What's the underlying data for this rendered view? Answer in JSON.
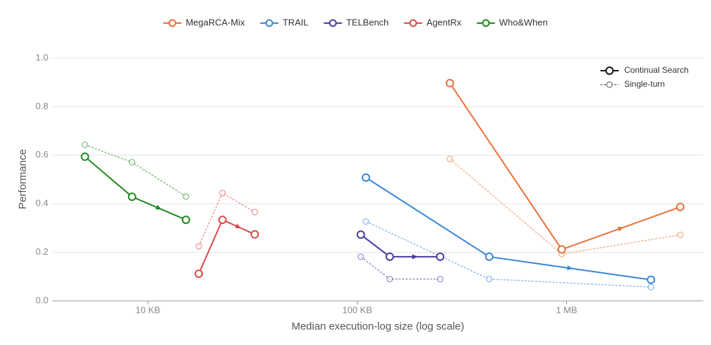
{
  "chart_data": {
    "type": "line",
    "xlabel": "Median execution-log size (log scale)",
    "ylabel": "Performance",
    "xscale": "log",
    "xlim": [
      3.5,
      4500
    ],
    "xticks": [
      {
        "value": 10,
        "label": "10 KB"
      },
      {
        "value": 100,
        "label": "100 KB"
      },
      {
        "value": 1000,
        "label": "1 MB"
      }
    ],
    "ylim": [
      0,
      1
    ],
    "yticks": [
      {
        "value": 0,
        "label": "0.0"
      },
      0.2,
      0.4,
      0.6,
      0.8,
      {
        "value": 1,
        "label": "1.0"
      }
    ],
    "grid": true,
    "style_legend": {
      "continual": "Continual Search",
      "single": "Single-turn"
    },
    "series": [
      {
        "name": "MegaRCA-Mix",
        "color": "#e8703a",
        "x": [
          277,
          948,
          3494
        ],
        "values": [
          0.897,
          0.212,
          0.387
        ],
        "single_values": [
          0.585,
          0.193,
          0.272
        ]
      },
      {
        "name": "TRAIL",
        "color": "#3a86d8",
        "x": [
          110,
          427,
          2530
        ],
        "values": [
          0.508,
          0.182,
          0.087
        ],
        "single_values": [
          0.327,
          0.09,
          0.057
        ]
      },
      {
        "name": "TELBench",
        "color": "#4b3a9e",
        "x": [
          104,
          143,
          249
        ],
        "values": [
          0.273,
          0.182,
          0.182
        ],
        "single_values": [
          0.182,
          0.09,
          0.09
        ]
      },
      {
        "name": "AgentRx",
        "color": "#d94a4a",
        "x": [
          17.5,
          22.7,
          32.4
        ],
        "values": [
          0.112,
          0.334,
          0.274
        ],
        "single_values": [
          0.225,
          0.444,
          0.366
        ]
      },
      {
        "name": "Who&When",
        "color": "#1f8a1f",
        "x": [
          5,
          8.4,
          15.2
        ],
        "values": [
          0.594,
          0.429,
          0.334
        ],
        "single_values": [
          0.643,
          0.571,
          0.43
        ]
      }
    ]
  }
}
